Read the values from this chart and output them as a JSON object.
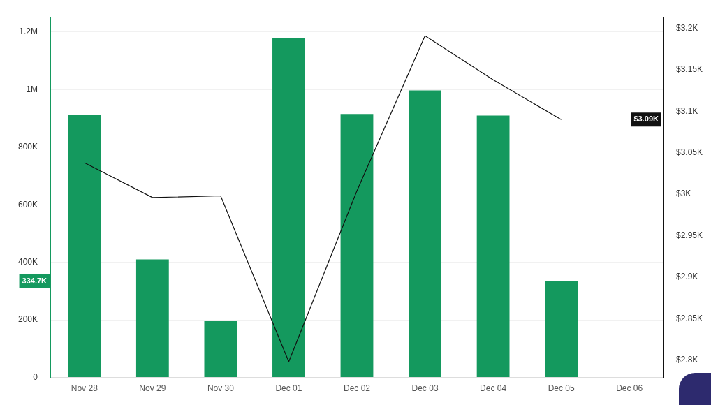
{
  "chart_data": {
    "type": "bar",
    "categories": [
      "Nov 28",
      "Nov 29",
      "Nov 30",
      "Dec 01",
      "Dec 02",
      "Dec 03",
      "Dec 04",
      "Dec 05",
      "Dec 06"
    ],
    "series": [
      {
        "color": "#14995e",
        "values": [
          912000,
          410000,
          198000,
          1179000,
          915000,
          997000,
          910000,
          334700,
          null
        ]
      },
      {
        "type": "line",
        "axis": "y2",
        "color": "#111111",
        "values": [
          3038,
          2996,
          2998,
          2798,
          3004,
          3191,
          3138,
          3090,
          null
        ]
      }
    ],
    "ylim": [
      0,
      1250000
    ],
    "yticks": [
      {
        "value": 0,
        "label": "0"
      },
      {
        "value": 200000,
        "label": "200K"
      },
      {
        "value": 400000,
        "label": "400K"
      },
      {
        "value": 600000,
        "label": "600K"
      },
      {
        "value": 800000,
        "label": "800K"
      },
      {
        "value": 1000000,
        "label": "1M"
      },
      {
        "value": 1200000,
        "label": "1.2M"
      }
    ],
    "y2lim": [
      2779,
      3213
    ],
    "y2ticks": [
      {
        "value": 2800,
        "label": "$2.8K"
      },
      {
        "value": 2850,
        "label": "$2.85K"
      },
      {
        "value": 2900,
        "label": "$2.9K"
      },
      {
        "value": 2950,
        "label": "$2.95K"
      },
      {
        "value": 3000,
        "label": "$3K"
      },
      {
        "value": 3050,
        "label": "$3.05K"
      },
      {
        "value": 3100,
        "label": "$3.1K"
      },
      {
        "value": 3150,
        "label": "$3.15K"
      },
      {
        "value": 3200,
        "label": "$3.2K"
      }
    ],
    "annotations": [
      "334.7K",
      "$3.09K"
    ],
    "grid": "y",
    "legend": false,
    "marker": "none",
    "line_style": "solid"
  }
}
